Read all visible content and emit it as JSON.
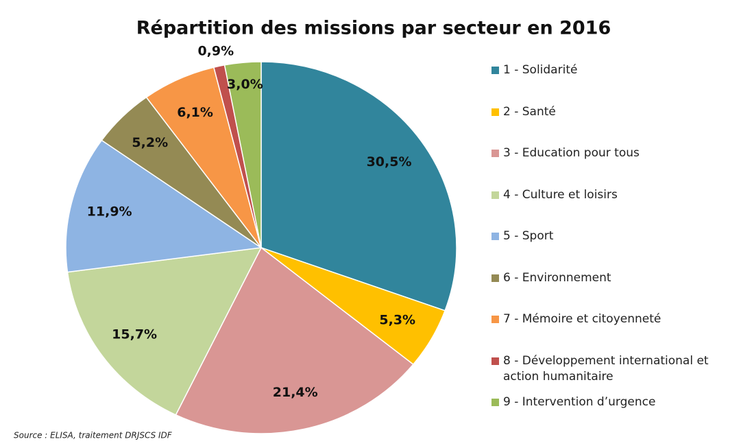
{
  "chart_data": {
    "type": "pie",
    "title": "Répartition des missions par secteur en 2016",
    "categories": [
      "1 - Solidarité",
      "2 - Santé",
      "3 - Education pour tous",
      "4 - Culture et loisirs",
      "5 - Sport",
      "6 - Environnement",
      "7 - Mémoire et citoyenneté",
      "8 - Développement international et action humanitaire",
      "9 - Intervention d’urgence"
    ],
    "values": [
      30.5,
      5.3,
      21.4,
      15.7,
      11.9,
      5.2,
      6.1,
      0.9,
      3.0
    ],
    "value_labels": [
      "30,5%",
      "5,3%",
      "21,4%",
      "15,7%",
      "11,9%",
      "5,2%",
      "6,1%",
      "0,9%",
      "3,0%"
    ],
    "colors": [
      "#31859c",
      "#ffc000",
      "#d99694",
      "#c3d69b",
      "#8eb4e3",
      "#948a54",
      "#f79646",
      "#c0504d",
      "#9bbb59"
    ],
    "legend": "right",
    "source": "Source : ELISA, traitement DRJSCS IDF"
  }
}
